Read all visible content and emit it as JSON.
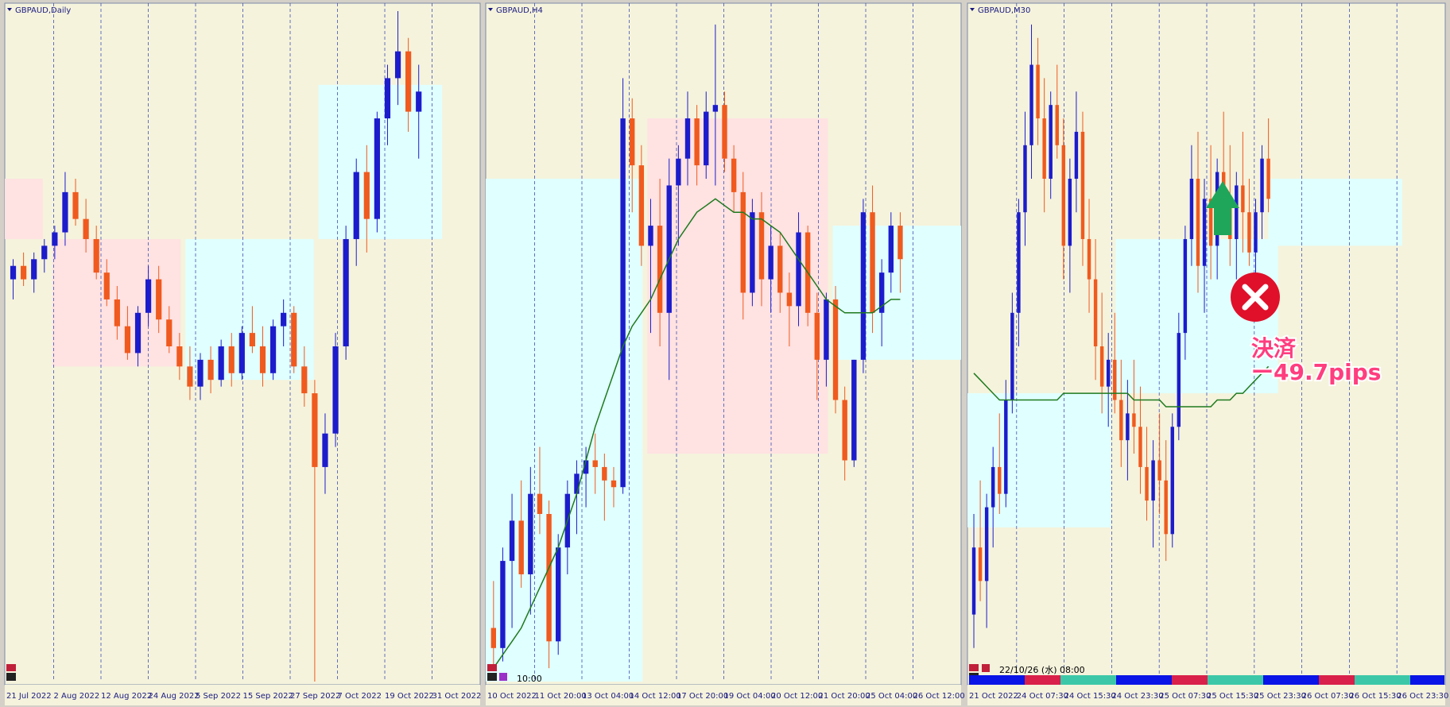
{
  "panels": [
    {
      "title": "GBPAUD,Daily",
      "ylim": [
        0,
        100
      ],
      "x_labels": [
        "21 Jul 2022",
        "2 Aug 2022",
        "12 Aug 2022",
        "24 Aug 2022",
        "5 Sep 2022",
        "15 Sep 2022",
        "27 Sep 2022",
        "7 Oct 2022",
        "19 Oct 2022",
        "31 Oct 2022"
      ],
      "candles": [
        [
          60,
          63,
          57,
          62
        ],
        [
          62,
          64,
          59,
          60
        ],
        [
          60,
          64,
          58,
          63
        ],
        [
          63,
          66,
          61,
          65
        ],
        [
          65,
          68,
          63,
          67
        ],
        [
          67,
          76,
          65,
          73
        ],
        [
          73,
          75,
          68,
          69
        ],
        [
          69,
          72,
          64,
          66
        ],
        [
          66,
          68,
          60,
          61
        ],
        [
          61,
          63,
          56,
          57
        ],
        [
          57,
          59,
          51,
          53
        ],
        [
          53,
          56,
          48,
          49
        ],
        [
          49,
          56,
          47,
          55
        ],
        [
          55,
          62,
          53,
          60
        ],
        [
          60,
          62,
          52,
          54
        ],
        [
          54,
          56,
          49,
          50
        ],
        [
          50,
          52,
          45,
          47
        ],
        [
          47,
          50,
          42,
          44
        ],
        [
          44,
          49,
          42,
          48
        ],
        [
          48,
          50,
          43,
          45
        ],
        [
          45,
          51,
          44,
          50
        ],
        [
          50,
          52,
          44,
          46
        ],
        [
          46,
          53,
          45,
          52
        ],
        [
          52,
          56,
          49,
          50
        ],
        [
          50,
          53,
          44,
          46
        ],
        [
          46,
          54,
          45,
          53
        ],
        [
          53,
          57,
          50,
          55
        ],
        [
          55,
          56,
          46,
          47
        ],
        [
          47,
          50,
          41,
          43
        ],
        [
          43,
          45,
          0,
          32
        ],
        [
          32,
          40,
          28,
          37
        ],
        [
          37,
          52,
          35,
          50
        ],
        [
          50,
          68,
          48,
          66
        ],
        [
          66,
          78,
          62,
          76
        ],
        [
          76,
          80,
          64,
          69
        ],
        [
          69,
          85,
          67,
          84
        ],
        [
          84,
          92,
          80,
          90
        ],
        [
          90,
          100,
          86,
          94
        ],
        [
          94,
          96,
          82,
          85
        ],
        [
          85,
          92,
          78,
          88
        ]
      ]
    },
    {
      "title": "GBPAUD,H4",
      "ylim": [
        0,
        100
      ],
      "x_labels": [
        "10 Oct 2022",
        "11 Oct 20:00",
        "13 Oct 04:00",
        "14 Oct 12:00",
        "17 Oct 20:00",
        "19 Oct 04:00",
        "20 Oct 12:00",
        "21 Oct 20:00",
        "25 Oct 04:00",
        "26 Oct 12:00"
      ],
      "candles": [
        [
          8,
          15,
          2,
          5
        ],
        [
          5,
          20,
          3,
          18
        ],
        [
          18,
          28,
          8,
          24
        ],
        [
          24,
          30,
          14,
          16
        ],
        [
          16,
          32,
          10,
          28
        ],
        [
          28,
          35,
          22,
          25
        ],
        [
          25,
          27,
          2,
          6
        ],
        [
          6,
          22,
          4,
          20
        ],
        [
          20,
          30,
          16,
          28
        ],
        [
          28,
          33,
          22,
          31
        ],
        [
          31,
          35,
          26,
          33
        ],
        [
          33,
          37,
          28,
          32
        ],
        [
          32,
          34,
          24,
          30
        ],
        [
          30,
          32,
          26,
          29
        ],
        [
          29,
          90,
          28,
          84
        ],
        [
          84,
          87,
          70,
          77
        ],
        [
          77,
          80,
          62,
          65
        ],
        [
          65,
          72,
          52,
          68
        ],
        [
          68,
          75,
          50,
          55
        ],
        [
          55,
          78,
          45,
          74
        ],
        [
          74,
          80,
          65,
          78
        ],
        [
          78,
          88,
          74,
          84
        ],
        [
          84,
          86,
          74,
          77
        ],
        [
          77,
          88,
          75,
          85
        ],
        [
          85,
          98,
          74,
          86
        ],
        [
          86,
          88,
          76,
          78
        ],
        [
          78,
          80,
          70,
          73
        ],
        [
          73,
          76,
          54,
          58
        ],
        [
          58,
          72,
          56,
          70
        ],
        [
          70,
          73,
          56,
          60
        ],
        [
          60,
          68,
          55,
          65
        ],
        [
          65,
          67,
          55,
          58
        ],
        [
          58,
          61,
          50,
          56
        ],
        [
          56,
          70,
          53,
          67
        ],
        [
          67,
          68,
          53,
          55
        ],
        [
          55,
          58,
          42,
          48
        ],
        [
          48,
          58,
          44,
          57
        ],
        [
          57,
          59,
          40,
          42
        ],
        [
          42,
          44,
          30,
          33
        ],
        [
          33,
          48,
          32,
          48
        ],
        [
          48,
          72,
          46,
          70
        ],
        [
          70,
          74,
          52,
          55
        ],
        [
          55,
          63,
          50,
          61
        ],
        [
          61,
          70,
          58,
          68
        ],
        [
          68,
          70,
          58,
          63
        ]
      ],
      "ma": [
        2,
        4,
        6,
        8,
        11,
        14,
        17,
        20,
        24,
        28,
        33,
        38,
        42,
        46,
        50,
        53,
        55,
        57,
        60,
        63,
        66,
        68,
        70,
        71,
        72,
        71,
        70,
        70,
        69,
        69,
        68,
        67,
        65,
        63,
        61,
        59,
        57,
        56,
        55,
        55,
        55,
        55,
        56,
        57,
        57
      ]
    },
    {
      "title": "GBPAUD,M30",
      "ylim": [
        0,
        100
      ],
      "x_labels": [
        "21 Oct 2022",
        "24 Oct 07:30",
        "24 Oct 15:30",
        "24 Oct 23:30",
        "25 Oct 07:30",
        "25 Oct 15:30",
        "25 Oct 23:30",
        "26 Oct 07:30",
        "26 Oct 15:30",
        "26 Oct 23:30"
      ],
      "candles": [
        [
          10,
          25,
          5,
          20
        ],
        [
          20,
          30,
          12,
          15
        ],
        [
          15,
          28,
          8,
          26
        ],
        [
          26,
          35,
          20,
          32
        ],
        [
          32,
          40,
          25,
          28
        ],
        [
          28,
          45,
          26,
          42
        ],
        [
          42,
          58,
          40,
          55
        ],
        [
          55,
          72,
          50,
          70
        ],
        [
          70,
          85,
          65,
          80
        ],
        [
          80,
          98,
          75,
          92
        ],
        [
          92,
          96,
          80,
          84
        ],
        [
          84,
          90,
          70,
          75
        ],
        [
          75,
          88,
          72,
          86
        ],
        [
          86,
          92,
          78,
          80
        ],
        [
          80,
          84,
          60,
          65
        ],
        [
          65,
          78,
          58,
          75
        ],
        [
          75,
          88,
          70,
          82
        ],
        [
          82,
          85,
          62,
          66
        ],
        [
          66,
          72,
          55,
          60
        ],
        [
          60,
          66,
          45,
          50
        ],
        [
          50,
          58,
          40,
          44
        ],
        [
          44,
          52,
          38,
          48
        ],
        [
          48,
          55,
          40,
          42
        ],
        [
          42,
          48,
          32,
          36
        ],
        [
          36,
          45,
          30,
          40
        ],
        [
          40,
          48,
          34,
          38
        ],
        [
          38,
          44,
          28,
          32
        ],
        [
          32,
          38,
          24,
          27
        ],
        [
          27,
          36,
          20,
          33
        ],
        [
          33,
          40,
          25,
          30
        ],
        [
          30,
          36,
          18,
          22
        ],
        [
          22,
          40,
          20,
          38
        ],
        [
          38,
          55,
          36,
          52
        ],
        [
          52,
          68,
          48,
          66
        ],
        [
          66,
          80,
          62,
          75
        ],
        [
          75,
          82,
          58,
          62
        ],
        [
          62,
          75,
          55,
          72
        ],
        [
          72,
          80,
          60,
          65
        ],
        [
          65,
          78,
          60,
          76
        ],
        [
          76,
          85,
          68,
          72
        ],
        [
          72,
          80,
          62,
          66
        ],
        [
          66,
          76,
          60,
          74
        ],
        [
          74,
          82,
          64,
          70
        ],
        [
          70,
          75,
          62,
          64
        ],
        [
          64,
          72,
          60,
          70
        ],
        [
          70,
          80,
          66,
          78
        ],
        [
          78,
          84,
          70,
          72
        ]
      ],
      "ma": [
        46,
        45,
        44,
        43,
        42,
        42,
        42,
        42,
        42,
        42,
        42,
        42,
        42,
        42,
        43,
        43,
        43,
        43,
        43,
        43,
        43,
        43,
        43,
        43,
        43,
        42,
        42,
        42,
        42,
        42,
        41,
        41,
        41,
        41,
        41,
        41,
        41,
        41,
        42,
        42,
        42,
        43,
        43,
        44,
        45,
        46,
        47
      ]
    }
  ],
  "time_label": "10:00",
  "date_label": "22/10/26 (水) 08:00",
  "annotation": {
    "label": "決済",
    "pips": "ー49.7pips"
  }
}
